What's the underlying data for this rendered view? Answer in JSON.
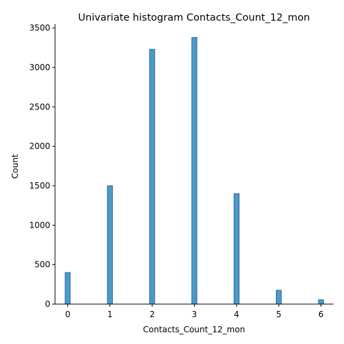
{
  "chart_data": {
    "type": "bar",
    "title": "Univariate histogram Contacts_Count_12_mon",
    "xlabel": "Contacts_Count_12_mon",
    "ylabel": "Count",
    "x": [
      0,
      1,
      2,
      3,
      4,
      5,
      6
    ],
    "values": [
      400,
      1500,
      3230,
      3380,
      1400,
      175,
      55
    ],
    "xlim": [
      -0.3,
      6.3
    ],
    "ylim": [
      0,
      3550
    ],
    "xticks": [
      0,
      1,
      2,
      3,
      4,
      5,
      6
    ],
    "yticks": [
      0,
      500,
      1000,
      1500,
      2000,
      2500,
      3000,
      3500
    ],
    "bar_color": "#4c9ac9",
    "edge_color": "#2a6a9a",
    "grid": false
  }
}
